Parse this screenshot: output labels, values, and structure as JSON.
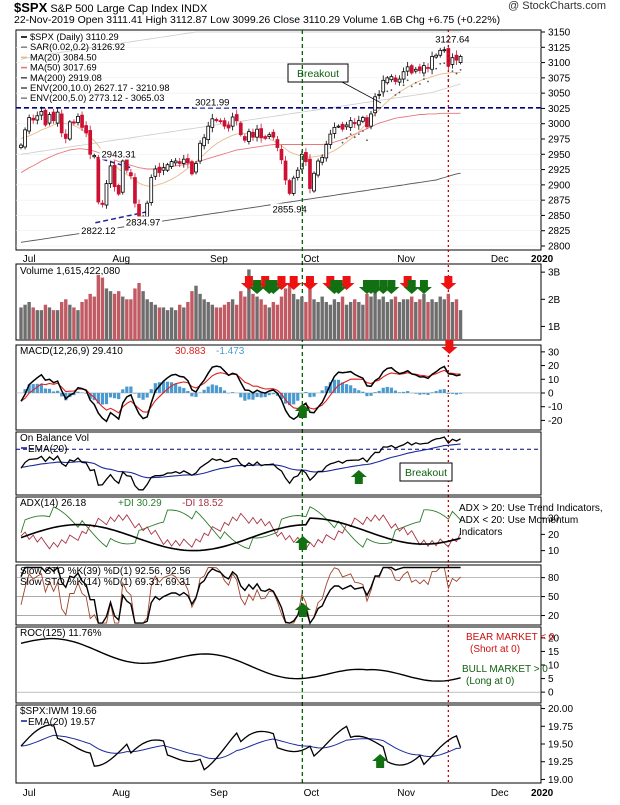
{
  "header": {
    "symbol": "$SPX",
    "description": "S&P 500 Large Cap Index",
    "exchange": "INDX",
    "stamp": "@ StockCharts.com",
    "quote": "22-Nov-2019  Open 3111.41  High 3112.87  Low 3099.26  Close 3110.29  Volume 1.6B  Chg +6.75 (+0.22%)"
  },
  "colors": {
    "up": "#000000",
    "down": "#cc1133",
    "ma20": "#e8b98a",
    "ma50": "#e8777a",
    "ma200": "#555555",
    "env": "#bbbbbb",
    "breakout_line": "#000088",
    "green_vline": "#006600",
    "red_vline": "#cc0000",
    "macd_hist": "#4a9ad1",
    "vol_up": "#6e6e6e",
    "vol_down": "#c15a62",
    "plus_di": "#2d7d2d",
    "minus_di": "#aa3344"
  },
  "chart_data": [
    {
      "type": "candlestick",
      "name": "price",
      "legend": [
        "$SPX (Daily) 3110.29",
        "SAR(0.02,0.2) 3126.92",
        "MA(20) 3084.50",
        "MA(50) 3017.69",
        "MA(200) 2919.08",
        "ENV(200,10.0) 2627.17 - 3210.98",
        "ENV(200,5.0) 2773.12 - 3065.03"
      ],
      "x_labels": [
        "Jul",
        "Aug",
        "Sep",
        "Oct",
        "Nov",
        "Dec",
        "2020"
      ],
      "ylim": [
        2800,
        3150
      ],
      "yticks": [
        2800,
        2825,
        2850,
        2875,
        2900,
        2925,
        2950,
        2975,
        3000,
        3025,
        3050,
        3075,
        3100,
        3125,
        3150
      ],
      "closes": [
        2965,
        2990,
        3010,
        3006,
        3013,
        3020,
        2998,
        3015,
        3005,
        3019,
        2985,
        2976,
        3003,
        3001,
        3012,
        2994,
        2985,
        2950,
        2948,
        2872,
        2868,
        2902,
        2931,
        2897,
        2885,
        2939,
        2924,
        2915,
        2870,
        2843,
        2848,
        2870,
        2912,
        2926,
        2920,
        2928,
        2933,
        2938,
        2939,
        2935,
        2942,
        2936,
        2918,
        2935,
        2968,
        2977,
        2996,
        3008,
        3005,
        3004,
        2996,
        2993,
        3011,
        3005,
        2982,
        2973,
        2987,
        2978,
        2991,
        2977,
        2976,
        2982,
        2978,
        2961,
        2941,
        2908,
        2886,
        2911,
        2924,
        2950,
        2938,
        2894,
        2919,
        2939,
        2945,
        2966,
        2983,
        2994,
        2996,
        2991,
        2998,
        3005,
        3000,
        3005,
        3010,
        2995,
        3016,
        3044,
        3048,
        3071,
        3075,
        3077,
        3069,
        3073,
        3085,
        3093,
        3083,
        3089,
        3087,
        3095,
        3091,
        3110,
        3112,
        3120,
        3121,
        3094,
        3108,
        3104,
        3110
      ],
      "ma20": [
        2976,
        2978,
        2980,
        2983,
        2986,
        2990,
        2992,
        2995,
        2998,
        3000,
        3001,
        3000,
        2999,
        2997,
        2994,
        2990,
        2985,
        2979,
        2972,
        2964,
        2956,
        2948,
        2940,
        2933,
        2926,
        2921,
        2917,
        2913,
        2908,
        2903,
        2900,
        2898,
        2898,
        2899,
        2901,
        2903,
        2906,
        2909,
        2913,
        2917,
        2922,
        2927,
        2932,
        2938,
        2944,
        2950,
        2956,
        2962,
        2967,
        2971,
        2975,
        2978,
        2981,
        2983,
        2984,
        2984,
        2984,
        2983,
        2982,
        2980,
        2978,
        2975,
        2972,
        2968,
        2964,
        2959,
        2954,
        2951,
        2949,
        2947,
        2946,
        2945,
        2946,
        2947,
        2948,
        2950,
        2953,
        2956,
        2960,
        2965,
        2970,
        2975,
        2981,
        2987,
        2994,
        3001,
        3008,
        3016,
        3023,
        3030,
        3036,
        3042,
        3047,
        3052,
        3056,
        3060,
        3064,
        3067,
        3070,
        3073,
        3075,
        3077,
        3079,
        3081,
        3082,
        3083,
        3084,
        3084,
        3084
      ],
      "ma50": [
        2920,
        2924,
        2928,
        2931,
        2935,
        2939,
        2942,
        2945,
        2948,
        2951,
        2953,
        2955,
        2957,
        2958,
        2959,
        2959,
        2958,
        2957,
        2955,
        2953,
        2950,
        2947,
        2944,
        2941,
        2938,
        2936,
        2934,
        2932,
        2930,
        2928,
        2927,
        2926,
        2926,
        2926,
        2927,
        2928,
        2929,
        2930,
        2931,
        2932,
        2933,
        2934,
        2935,
        2937,
        2939,
        2941,
        2943,
        2945,
        2947,
        2949,
        2951,
        2953,
        2955,
        2957,
        2958,
        2959,
        2960,
        2961,
        2962,
        2963,
        2964,
        2965,
        2966,
        2966,
        2966,
        2966,
        2966,
        2966,
        2966,
        2966,
        2966,
        2966,
        2966,
        2966,
        2966,
        2967,
        2968,
        2970,
        2972,
        2974,
        2977,
        2980,
        2983,
        2986,
        2989,
        2992,
        2995,
        2998,
        3001,
        3003,
        3005,
        3007,
        3009,
        3010,
        3011,
        3012,
        3013,
        3014,
        3015,
        3015,
        3016,
        3016,
        3016,
        3017,
        3017,
        3017,
        3017,
        3017,
        3017
      ],
      "ma200": [
        2806,
        2807,
        2808,
        2809,
        2810,
        2811,
        2812,
        2813,
        2814,
        2815,
        2816,
        2817,
        2818,
        2819,
        2820,
        2821,
        2822,
        2823,
        2824,
        2825,
        2826,
        2827,
        2828,
        2829,
        2830,
        2831,
        2832,
        2833,
        2834,
        2835,
        2836,
        2837,
        2838,
        2839,
        2840,
        2841,
        2842,
        2843,
        2844,
        2845,
        2846,
        2847,
        2848,
        2849,
        2850,
        2851,
        2852,
        2853,
        2854,
        2855,
        2856,
        2857,
        2858,
        2859,
        2860,
        2861,
        2862,
        2863,
        2864,
        2865,
        2866,
        2867,
        2868,
        2869,
        2870,
        2871,
        2872,
        2873,
        2874,
        2875,
        2876,
        2877,
        2878,
        2879,
        2880,
        2881,
        2882,
        2883,
        2884,
        2885,
        2886,
        2887,
        2888,
        2889,
        2890,
        2891,
        2892,
        2893,
        2894,
        2895,
        2896,
        2897,
        2898,
        2899,
        2900,
        2901,
        2902,
        2903,
        2904,
        2905,
        2906,
        2907,
        2908,
        2910,
        2912,
        2914,
        2916,
        2918,
        2919
      ],
      "env_upper": [
        3105,
        3107,
        3108,
        3109,
        3110,
        3111,
        3113,
        3114,
        3115,
        3116,
        3117,
        3118,
        3119,
        3120,
        3121,
        3122,
        3123,
        3124,
        3125,
        3126,
        3127,
        3128,
        3129,
        3130,
        3131,
        3132,
        3133,
        3134,
        3135,
        3136,
        3137,
        3138,
        3139,
        3140,
        3141,
        3142,
        3143,
        3144,
        3145,
        3146,
        3147,
        3148,
        3149,
        3150,
        3150,
        3150,
        3150,
        3150,
        3150,
        3150,
        3150,
        3150,
        3150,
        3150,
        3150,
        3150,
        3150,
        3150,
        3150,
        3150,
        3150,
        3150,
        3150,
        3150,
        3150,
        3150,
        3150,
        3150,
        3150,
        3150,
        3150,
        3150,
        3150,
        3150,
        3150,
        3150,
        3150,
        3150,
        3150,
        3150,
        3150,
        3150,
        3150,
        3150,
        3150,
        3150,
        3150,
        3150,
        3150,
        3150,
        3150,
        3150,
        3150,
        3150,
        3150,
        3150,
        3150,
        3150,
        3150,
        3150,
        3150,
        3150,
        3150,
        3150,
        3150,
        3150,
        3150,
        3150,
        3150
      ],
      "env5_upper": [
        2950,
        2951,
        2952,
        2953,
        2954,
        2955,
        2956,
        2957,
        2958,
        2959,
        2960,
        2961,
        2962,
        2963,
        2964,
        2965,
        2966,
        2967,
        2968,
        2969,
        2970,
        2971,
        2972,
        2973,
        2974,
        2975,
        2976,
        2977,
        2978,
        2979,
        2980,
        2981,
        2982,
        2983,
        2984,
        2985,
        2986,
        2987,
        2988,
        2989,
        2990,
        2991,
        2992,
        2993,
        2994,
        2995,
        2996,
        2997,
        2998,
        2999,
        3000,
        3001,
        3002,
        3003,
        3004,
        3005,
        3006,
        3007,
        3008,
        3009,
        3010,
        3011,
        3012,
        3013,
        3014,
        3015,
        3016,
        3017,
        3018,
        3019,
        3020,
        3021,
        3022,
        3023,
        3024,
        3025,
        3026,
        3027,
        3028,
        3029,
        3030,
        3031,
        3032,
        3033,
        3034,
        3035,
        3036,
        3037,
        3038,
        3039,
        3040,
        3041,
        3042,
        3043,
        3044,
        3045,
        3046,
        3047,
        3048,
        3049,
        3050,
        3051,
        3053,
        3055,
        3057,
        3059,
        3061,
        3063,
        3065
      ],
      "breakout_level": 3026,
      "annotations": [
        {
          "label": "3021.99",
          "idx": 47,
          "value": 3028
        },
        {
          "label": "2943.31",
          "idx": 24,
          "value": 2943
        },
        {
          "label": "2822.12",
          "idx": 19,
          "value": 2818
        },
        {
          "label": "2834.97",
          "idx": 30,
          "value": 2832
        },
        {
          "label": "2855.94",
          "idx": 66,
          "value": 2853
        },
        {
          "label": "3127.64",
          "idx": 106,
          "value": 3131
        }
      ],
      "callout": "Breakout"
    },
    {
      "type": "bar",
      "name": "volume",
      "legend": "Volume 1,615,422,080",
      "yticks": [
        "1B",
        "2B",
        "3B"
      ],
      "ylim": [
        0.5,
        3.3
      ],
      "values": [
        1.7,
        1.8,
        1.9,
        1.7,
        1.6,
        1.6,
        1.8,
        1.7,
        1.6,
        1.6,
        1.9,
        2.0,
        1.8,
        1.7,
        1.6,
        1.9,
        2.0,
        2.2,
        2.1,
        2.9,
        2.8,
        2.4,
        2.3,
        2.2,
        2.3,
        2.1,
        2.0,
        2.0,
        2.4,
        2.6,
        2.3,
        2.0,
        1.9,
        1.8,
        1.7,
        1.7,
        1.6,
        1.7,
        1.6,
        1.8,
        1.7,
        1.9,
        2.3,
        2.5,
        2.2,
        2.0,
        1.9,
        1.8,
        1.7,
        1.7,
        1.8,
        1.9,
        2.0,
        1.8,
        2.3,
        2.1,
        3.1,
        2.2,
        2.1,
        2.0,
        1.8,
        1.7,
        1.9,
        1.8,
        2.1,
        2.4,
        2.6,
        2.2,
        2.0,
        2.1,
        1.9,
        2.4,
        2.0,
        1.9,
        2.1,
        1.9,
        1.8,
        2.0,
        1.9,
        2.1,
        1.8,
        1.9,
        2.0,
        1.9,
        1.8,
        2.2,
        2.1,
        2.3,
        2.0,
        2.1,
        1.9,
        2.0,
        2.1,
        1.9,
        2.0,
        2.0,
        2.1,
        1.9,
        2.0,
        2.2,
        1.9,
        2.0,
        1.9,
        2.1,
        2.0,
        2.2,
        1.9,
        2.0,
        1.6
      ],
      "red_arrow_idx": [
        56,
        60,
        64,
        67,
        71,
        76,
        80,
        95,
        105
      ],
      "green_arrow_idx": [
        58,
        61,
        62,
        77,
        78,
        85,
        86,
        87,
        89,
        91,
        96,
        99
      ]
    },
    {
      "type": "line",
      "name": "macd",
      "legend": [
        "MACD(12,26,9) 29.410",
        "30.883",
        "-1.473"
      ],
      "ylim": [
        -27,
        35
      ],
      "yticks": [
        -20,
        -10,
        0,
        10,
        20,
        30
      ],
      "green_arrow_idx": 69,
      "red_arrow_idx": 105
    },
    {
      "type": "line",
      "name": "obv",
      "legend": [
        "On Balance Vol",
        "EMA(20)"
      ],
      "callout": "Breakout",
      "green_arrow_idx": 83
    },
    {
      "type": "line",
      "name": "adx",
      "legend": [
        "ADX(14) 26.18",
        "+DI 30.29",
        "-DI 18.52"
      ],
      "ylim": [
        3,
        43
      ],
      "yticks": [
        10,
        20,
        30
      ],
      "note": "ADX > 20: Use Trend Indicators, ADX < 20: Use Momentum Indicators",
      "green_arrow_idx": 69
    },
    {
      "type": "line",
      "name": "slow_sto",
      "legend": [
        "Slow STO %K(39) %D(1) 92.56, 92.56",
        "Slow STO %K(14) %D(1) 69.31, 69.31"
      ],
      "ylim": [
        5,
        100
      ],
      "yticks": [
        20,
        50,
        80
      ],
      "green_arrow_idx": 69
    },
    {
      "type": "line",
      "name": "roc",
      "legend": "ROC(125) 11.76%",
      "ylim": [
        -4,
        24
      ],
      "yticks": [
        0,
        5,
        10,
        15,
        20
      ],
      "bear_note": "BEAR MARKET < 0 (Short at 0)",
      "bull_note": "BULL MARKET > 0 (Long at 0)"
    },
    {
      "type": "line",
      "name": "ratio",
      "legend": [
        "$SPX:IWM 19.66",
        "EMA(20) 19.57"
      ],
      "ylim": [
        18.95,
        20.05
      ],
      "yticks": [
        19.0,
        19.25,
        19.5,
        19.75,
        20.0
      ],
      "green_arrow_idx": 88
    }
  ]
}
